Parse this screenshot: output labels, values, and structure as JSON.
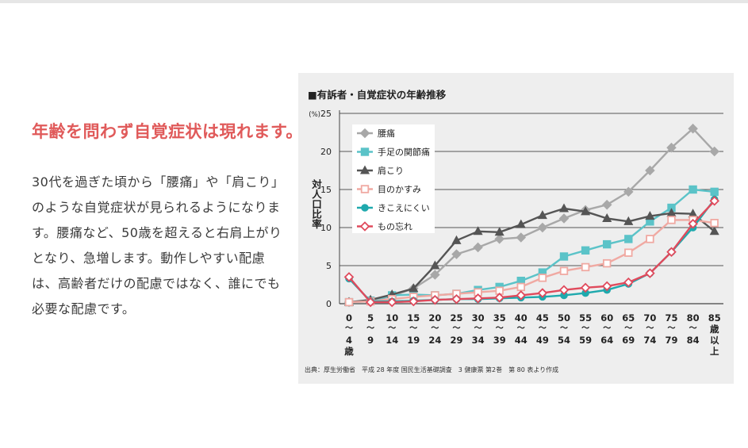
{
  "page": {
    "headline": "年齢を問わず自覚症状は現れます。",
    "body": "30代を過ぎた頃から「腰痛」や「肩こり」のような自覚症状が見られるようになります。腰痛など、50歳を超えると右肩上がりとなり、急増します。動作しやすい配慮は、高齢者だけの配慮ではなく、誰にでも必要な配慮です。"
  },
  "chart_data": {
    "type": "line",
    "title": "■有訴者・自覚症状の年齢推移",
    "ylabel": "対人口比率",
    "yunit": "(%)",
    "ylim": [
      0,
      25
    ],
    "yticks": [
      0,
      5,
      10,
      15,
      20,
      25
    ],
    "grid": true,
    "legend_position": "top-left",
    "categories": [
      "0〜4歳",
      "5〜9",
      "10〜14",
      "15〜19",
      "20〜24",
      "25〜29",
      "30〜34",
      "35〜39",
      "40〜44",
      "45〜49",
      "50〜54",
      "55〜59",
      "60〜64",
      "65〜69",
      "70〜74",
      "75〜79",
      "80〜84",
      "85歳以上"
    ],
    "tick_labels": [
      [
        "0",
        "〜",
        "4",
        "歳"
      ],
      [
        "5",
        "〜",
        "9"
      ],
      [
        "10",
        "〜",
        "14"
      ],
      [
        "15",
        "〜",
        "19"
      ],
      [
        "20",
        "〜",
        "24"
      ],
      [
        "25",
        "〜",
        "29"
      ],
      [
        "30",
        "〜",
        "34"
      ],
      [
        "35",
        "〜",
        "39"
      ],
      [
        "40",
        "〜",
        "44"
      ],
      [
        "45",
        "〜",
        "49"
      ],
      [
        "50",
        "〜",
        "54"
      ],
      [
        "55",
        "〜",
        "59"
      ],
      [
        "60",
        "〜",
        "64"
      ],
      [
        "65",
        "〜",
        "69"
      ],
      [
        "70",
        "〜",
        "74"
      ],
      [
        "75",
        "〜",
        "79"
      ],
      [
        "80",
        "〜",
        "84"
      ],
      [
        "85",
        "歳",
        "以",
        "上"
      ]
    ],
    "series": [
      {
        "name": "腰痛",
        "color": "#a8a8a8",
        "marker": "diamond-filled",
        "values": [
          0.2,
          0.3,
          1.0,
          2.0,
          3.8,
          6.5,
          7.4,
          8.5,
          8.7,
          10.0,
          11.2,
          12.3,
          13.0,
          14.7,
          17.5,
          20.5,
          23.0,
          20.0
        ]
      },
      {
        "name": "手足の関節痛",
        "color": "#5bc3c8",
        "marker": "square-filled",
        "values": [
          0.2,
          0.4,
          1.1,
          1.2,
          1.1,
          1.3,
          1.8,
          2.2,
          3.0,
          4.1,
          6.2,
          7.0,
          7.8,
          8.5,
          10.8,
          12.6,
          15.0,
          14.7
        ]
      },
      {
        "name": "肩こり",
        "color": "#555555",
        "marker": "triangle-filled",
        "values": [
          0.2,
          0.5,
          1.2,
          2.0,
          5.0,
          8.3,
          9.5,
          9.4,
          10.4,
          11.6,
          12.5,
          12.1,
          11.2,
          10.8,
          11.5,
          11.9,
          11.8,
          9.5
        ]
      },
      {
        "name": "目のかすみ",
        "color": "#f0a9a2",
        "marker": "square-open",
        "values": [
          0.2,
          0.3,
          0.6,
          0.9,
          1.1,
          1.3,
          1.5,
          1.7,
          2.2,
          3.4,
          4.3,
          4.8,
          5.3,
          6.7,
          8.5,
          11.0,
          11.0,
          10.6
        ]
      },
      {
        "name": "きこえにくい",
        "color": "#1fa9ad",
        "marker": "circle-filled",
        "values": [
          3.3,
          0.3,
          0.3,
          0.4,
          0.5,
          0.6,
          0.6,
          0.7,
          0.8,
          0.9,
          1.1,
          1.4,
          1.8,
          2.6,
          4.0,
          6.8,
          10.0,
          13.7
        ]
      },
      {
        "name": "もの忘れ",
        "color": "#e04a5c",
        "marker": "diamond-open",
        "values": [
          3.5,
          0.2,
          0.2,
          0.3,
          0.5,
          0.6,
          0.7,
          0.8,
          1.1,
          1.4,
          1.8,
          2.1,
          2.3,
          2.8,
          4.0,
          6.8,
          10.5,
          13.5
        ]
      }
    ],
    "source": "出典：厚生労働省　平成 28 年度 国民生活基礎調査　3 健康票 第2巻　第 80 表より作成"
  }
}
